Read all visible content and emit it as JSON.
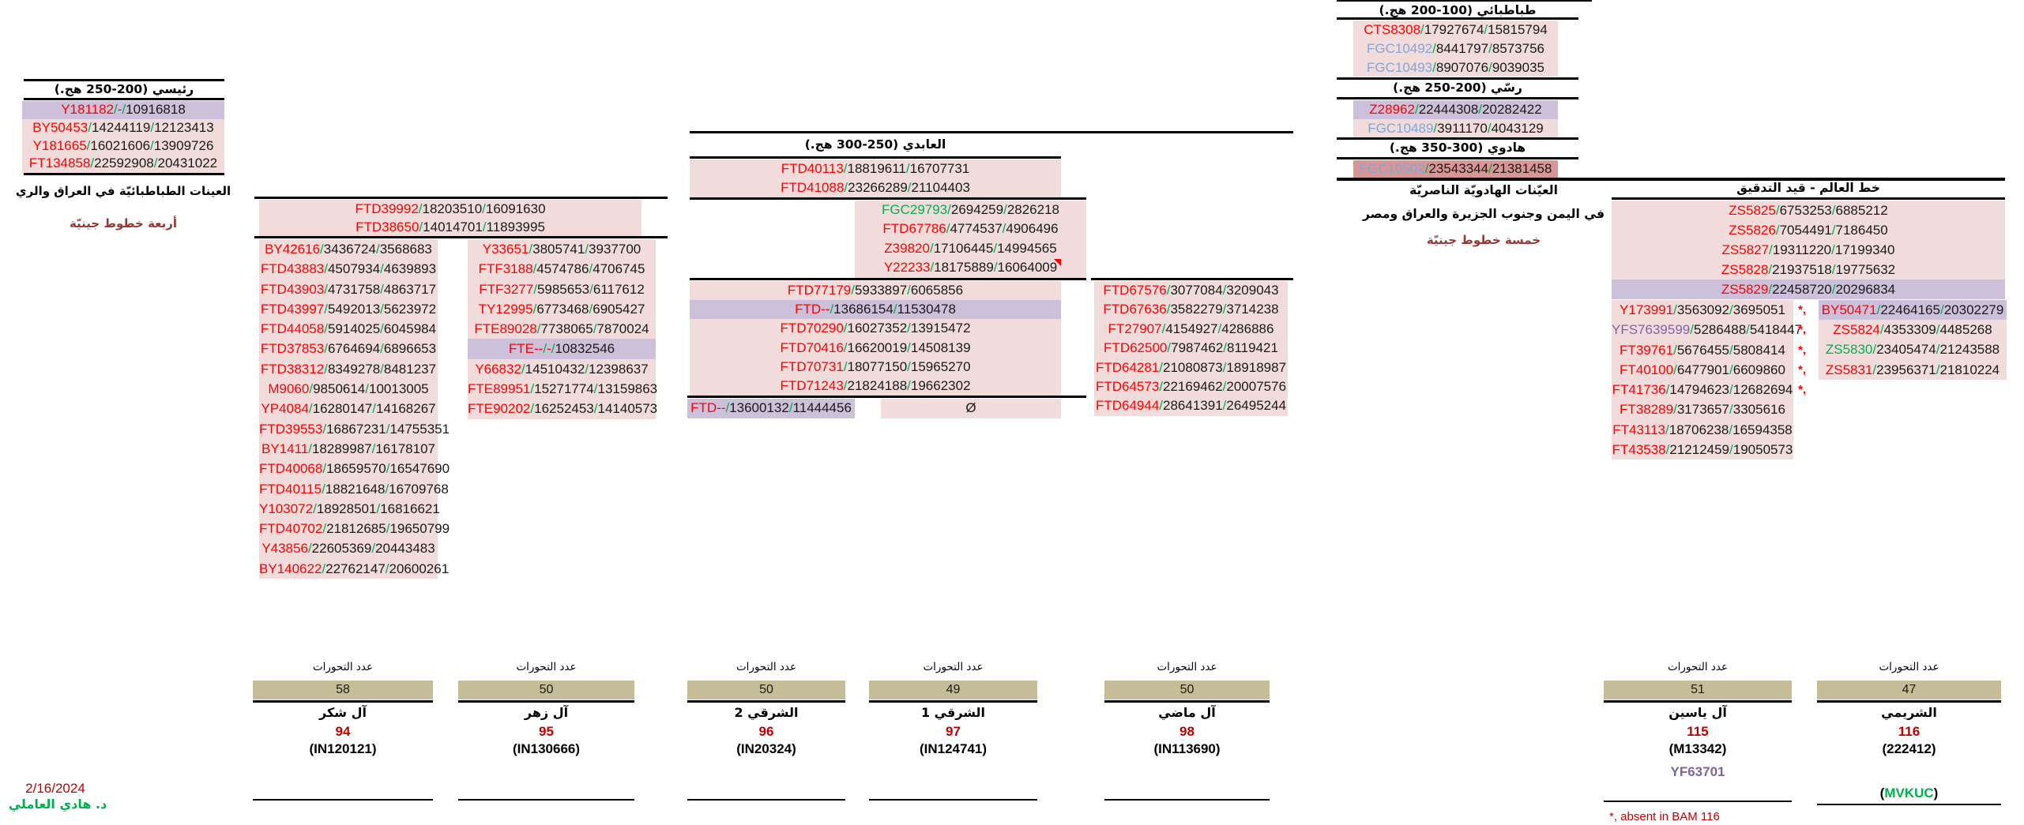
{
  "colors": {
    "pink": "#F2DCDB",
    "purple": "#CCC0DA",
    "dark_red": "#D99694",
    "tan": "#C4BD97",
    "snp_red": "#FF0000",
    "snp_blue": "#7FA7DC",
    "snp_green": "#00B050",
    "snp_purple": "#8064A2",
    "slash_green": "#00B050",
    "accent_red": "#C00000",
    "note_red": "#953735",
    "green_text": "#00B050"
  },
  "headers": {
    "tabatabai": "طباطبائي (100-200 هج.)",
    "rassi": "رسّي (200-250 هج.)",
    "hadawi": "هادوي (300-350 هج.)",
    "raisi": "رئيسي (200-250 هج.)",
    "abidi": "العابدي (250-300 هج.)",
    "world": "خط العالم - قيد التدقيق"
  },
  "notes": {
    "left1": "العينات الطباطبائيّة في العراق والري",
    "left2": "أربعة خطوط جينيّة",
    "right1": "العيّنات الهادويّة الناصريّة",
    "right2": "في اليمن وجنوب الجزيرة والعراق ومصر",
    "right3": "خمسة خطوط جينيّة",
    "mutations_label": "عدد التحورات",
    "star": "*,",
    "footnote": "*, absent in BAM 116",
    "date": "2/16/2024",
    "author": "د. هادي العاملي",
    "empty": "Ø"
  },
  "groups": {
    "tabatabai": [
      {
        "snp": "CTS8308",
        "c": "red",
        "v1": "17927674",
        "v2": "15815794"
      },
      {
        "snp": "FGC10492",
        "c": "blue",
        "v1": "8441797",
        "v2": "8573756"
      },
      {
        "snp": "FGC10493",
        "c": "blue",
        "v1": "8907076",
        "v2": "9039035"
      }
    ],
    "rassi": [
      {
        "snp": "Z28962",
        "c": "red",
        "v1": "22444308",
        "v2": "20282422",
        "bg": "purple"
      },
      {
        "snp": "FGC10489",
        "c": "blue",
        "v1": "3911170",
        "v2": "4043129"
      }
    ],
    "hadawi": [
      {
        "snp": "FGC10502",
        "c": "blue",
        "v1": "23543344",
        "v2": "21381458",
        "bg": "darkred"
      }
    ],
    "raisi": [
      {
        "snp": "Y181182",
        "c": "red",
        "v1": "-",
        "v1c": "red",
        "v2": "10916818",
        "bg": "purple"
      },
      {
        "snp": "BY50453",
        "c": "red",
        "v1": "14244119",
        "v2": "12123413"
      },
      {
        "snp": "Y181665",
        "c": "red",
        "v1": "16021606",
        "v2": "13909726"
      },
      {
        "snp": "FT134858",
        "c": "red",
        "v1": "22592908",
        "v2": "20431022"
      }
    ],
    "c12": [
      {
        "snp": "FTD39992",
        "c": "red",
        "v1": "18203510",
        "v2": "16091630"
      },
      {
        "snp": "FTD38650",
        "c": "red",
        "v1": "14014701",
        "v2": "11893995"
      }
    ],
    "col1": [
      {
        "snp": "BY42616",
        "c": "red",
        "v1": "3436724",
        "v2": "3568683"
      },
      {
        "snp": "FTD43883",
        "c": "red",
        "v1": "4507934",
        "v2": "4639893"
      },
      {
        "snp": "FTD43903",
        "c": "red",
        "v1": "4731758",
        "v2": "4863717"
      },
      {
        "snp": "FTD43997",
        "c": "red",
        "v1": "5492013",
        "v2": "5623972"
      },
      {
        "snp": "FTD44058",
        "c": "red",
        "v1": "5914025",
        "v2": "6045984"
      },
      {
        "snp": "FTD37853",
        "c": "red",
        "v1": "6764694",
        "v2": "6896653"
      },
      {
        "snp": "FTD38312",
        "c": "red",
        "v1": "8349278",
        "v2": "8481237"
      },
      {
        "snp": "M9060",
        "c": "red",
        "v1": "9850614",
        "v2": "10013005"
      },
      {
        "snp": "YP4084",
        "c": "red",
        "v1": "16280147",
        "v2": "14168267"
      },
      {
        "snp": "FTD39553",
        "c": "red",
        "v1": "16867231",
        "v2": "14755351"
      },
      {
        "snp": "BY1411",
        "c": "red",
        "v1": "18289987",
        "v2": "16178107"
      },
      {
        "snp": "FTD40068",
        "c": "red",
        "v1": "18659570",
        "v2": "16547690"
      },
      {
        "snp": "FTD40115",
        "c": "red",
        "v1": "18821648",
        "v2": "16709768"
      },
      {
        "snp": "Y103072",
        "c": "red",
        "v1": "18928501",
        "v2": "16816621"
      },
      {
        "snp": "FTD40702",
        "c": "red",
        "v1": "21812685",
        "v2": "19650799"
      },
      {
        "snp": "Y43856",
        "c": "red",
        "v1": "22605369",
        "v2": "20443483"
      },
      {
        "snp": "BY140622",
        "c": "red",
        "v1": "22762147",
        "v2": "20600261"
      }
    ],
    "col2": [
      {
        "snp": "Y33651",
        "c": "red",
        "v1": "3805741",
        "v2": "3937700"
      },
      {
        "snp": "FTF3188",
        "c": "red",
        "v1": "4574786",
        "v2": "4706745"
      },
      {
        "snp": "FTF3277",
        "c": "red",
        "v1": "5985653",
        "v2": "6117612"
      },
      {
        "snp": "TY12995",
        "c": "red",
        "v1": "6773468",
        "v2": "6905427"
      },
      {
        "snp": "FTE89028",
        "c": "red",
        "v1": "7738065",
        "v2": "7870024"
      },
      {
        "snp": "FTE--",
        "c": "red",
        "v1": "-",
        "v1c": "red",
        "v2": "10832546",
        "bg": "purple"
      },
      {
        "snp": "Y66832",
        "c": "red",
        "v1": "14510432",
        "v2": "12398637"
      },
      {
        "snp": "FTE89951",
        "c": "red",
        "v1": "15271774",
        "v2": "13159863"
      },
      {
        "snp": "FTE90202",
        "c": "red",
        "v1": "16252453",
        "v2": "14140573"
      }
    ],
    "abidi": [
      {
        "snp": "FTD40113",
        "c": "red",
        "v1": "18819611",
        "v2": "16707731"
      },
      {
        "snp": "FTD41088",
        "c": "red",
        "v1": "23266289",
        "v2": "21104403"
      }
    ],
    "fgc": [
      {
        "snp": "FGC29793",
        "c": "green",
        "v1": "2694259",
        "v2": "2826218"
      },
      {
        "snp": "FTD67786",
        "c": "red",
        "v1": "4774537",
        "v2": "4906496"
      },
      {
        "snp": "Z39820",
        "c": "red",
        "v1": "17106445",
        "v2": "14994565"
      },
      {
        "snp": "Y22233",
        "c": "red",
        "v1": "18175889",
        "v2": "16064009"
      }
    ],
    "c34": [
      {
        "snp": "FTD77179",
        "c": "red",
        "v1": "5933897",
        "v2": "6065856"
      },
      {
        "snp": "FTD--",
        "c": "red",
        "v1": "13686154",
        "v2": "11530478",
        "bg": "purple"
      },
      {
        "snp": "FTD70290",
        "c": "red",
        "v1": "16027352",
        "v2": "13915472"
      },
      {
        "snp": "FTD70416",
        "c": "red",
        "v1": "16620019",
        "v2": "14508139"
      },
      {
        "snp": "FTD70731",
        "c": "red",
        "v1": "18077150",
        "v2": "15965270"
      },
      {
        "snp": "FTD71243",
        "c": "red",
        "v1": "21824188",
        "v2": "19662302"
      }
    ],
    "c3tail": [
      {
        "snp": "FTD--",
        "c": "red",
        "v1": "13600132",
        "v2": "11444456",
        "bg": "purple"
      }
    ],
    "c4tail": [
      {
        "solo": "Ø"
      }
    ],
    "col5": [
      {
        "snp": "FTD67576",
        "c": "red",
        "v1": "3077084",
        "v2": "3209043"
      },
      {
        "snp": "FTD67636",
        "c": "red",
        "v1": "3582279",
        "v2": "3714238"
      },
      {
        "snp": "FT27907",
        "c": "red",
        "v1": "4154927",
        "v2": "4286886"
      },
      {
        "snp": "FTD62500",
        "c": "red",
        "v1": "7987462",
        "v2": "8119421"
      },
      {
        "snp": "FTD64281",
        "c": "red",
        "v1": "21080873",
        "v2": "18918987"
      },
      {
        "snp": "FTD64573",
        "c": "red",
        "v1": "22169462",
        "v2": "20007576"
      },
      {
        "snp": "FTD64944",
        "c": "red",
        "v1": "28641391",
        "v2": "26495244"
      }
    ],
    "world": [
      {
        "snp": "ZS5825",
        "c": "red",
        "v1": "6753253",
        "v2": "6885212"
      },
      {
        "snp": "ZS5826",
        "c": "red",
        "v1": "7054491",
        "v2": "7186450"
      },
      {
        "snp": "ZS5827",
        "c": "red",
        "v1": "19311220",
        "v2": "17199340"
      },
      {
        "snp": "ZS5828",
        "c": "red",
        "v1": "21937518",
        "v2": "19775632"
      },
      {
        "snp": "ZS5829",
        "c": "red",
        "v1": "22458720",
        "v2": "20296834",
        "bg": "purple"
      }
    ],
    "worldL": [
      {
        "snp": "Y173991",
        "c": "red",
        "v1": "3563092",
        "v2": "3695051"
      },
      {
        "snp": "YFS7639599",
        "c": "purple",
        "v1": "5286488",
        "v2": "5418447"
      },
      {
        "snp": "FT39761",
        "c": "red",
        "v1": "5676455",
        "v2": "5808414"
      },
      {
        "snp": "FT40100",
        "c": "red",
        "v1": "6477901",
        "v2": "6609860"
      },
      {
        "snp": "FT41736",
        "c": "red",
        "v1": "14794623",
        "v2": "12682694"
      },
      {
        "snp": "FT38289",
        "c": "red",
        "v1": "3173657",
        "v2": "3305616"
      },
      {
        "snp": "FT43113",
        "c": "red",
        "v1": "18706238",
        "v2": "16594358"
      },
      {
        "snp": "FT43538",
        "c": "red",
        "v1": "21212459",
        "v2": "19050573"
      }
    ],
    "worldR": [
      {
        "snp": "BY50471",
        "c": "red",
        "v1": "22464165",
        "v2": "20302279",
        "bg": "purple"
      },
      {
        "snp": "ZS5824",
        "c": "red",
        "v1": "4353309",
        "v2": "4485268"
      },
      {
        "snp": "ZS5830",
        "c": "green",
        "v1": "23405474",
        "v2": "21243588"
      },
      {
        "snp": "ZS5831",
        "c": "red",
        "v1": "23956371",
        "v2": "21810224"
      }
    ]
  },
  "bottom": [
    {
      "mutations": "58",
      "name": "آل شكر",
      "number": "94",
      "kit": "(IN120121)"
    },
    {
      "mutations": "50",
      "name": "آل زهر",
      "number": "95",
      "kit": "(IN130666)"
    },
    {
      "mutations": "50",
      "name": "الشرقي 2",
      "number": "96",
      "kit": "(IN20324)"
    },
    {
      "mutations": "49",
      "name": "الشرقي 1",
      "number": "97",
      "kit": "(IN124741)"
    },
    {
      "mutations": "50",
      "name": "آل ماضي",
      "number": "98",
      "kit": "(IN113690)"
    },
    {
      "mutations": "51",
      "name": "آل ياسين",
      "number": "115",
      "kit": "(M13342)",
      "extra": "YF63701",
      "extra_color": "purple"
    },
    {
      "mutations": "47",
      "name": "الشريمي",
      "number": "116",
      "kit": "(222412)",
      "extra": "MVKUC",
      "extra_color": "green",
      "extra_paren": true
    }
  ]
}
